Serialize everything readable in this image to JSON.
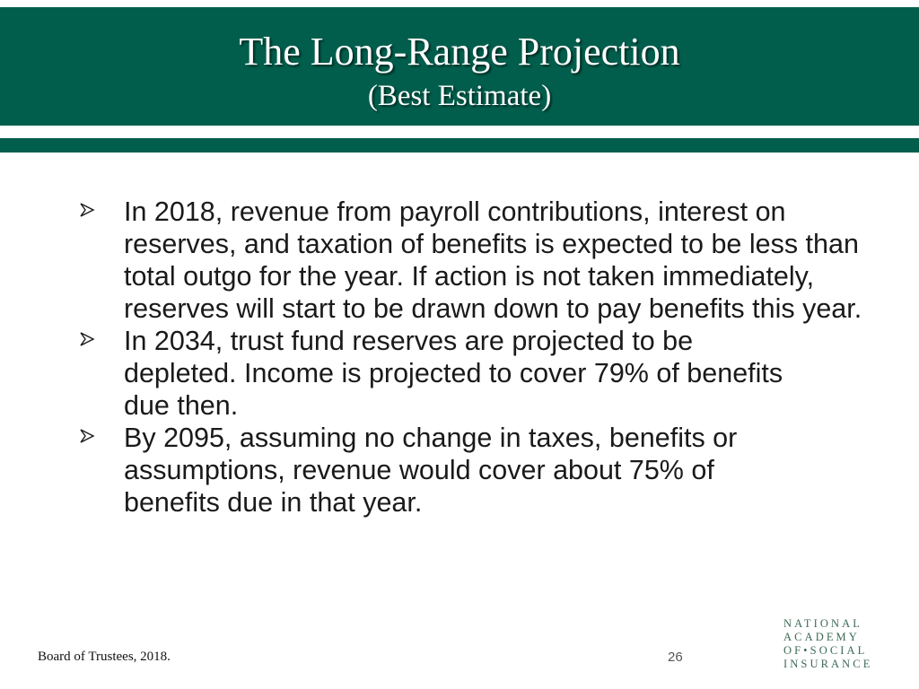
{
  "slide": {
    "title": "The Long-Range Projection",
    "subtitle": "(Best Estimate)"
  },
  "bullets": [
    {
      "icon": "arrow-bullet-icon",
      "text": "In 2018, revenue from payroll contributions, interest on reserves, and taxation of benefits is expected to be less than total outgo for the year. If action is not taken immediately, reserves will start to be drawn down to pay benefits this year."
    },
    {
      "icon": "arrow-bullet-icon",
      "text": "In 2034, trust fund reserves are projected to be depleted. Income is projected to cover 79% of benefits due then."
    },
    {
      "icon": "arrow-bullet-icon",
      "text": "By 2095, assuming no change in taxes, benefits or assumptions, revenue would cover about 75% of benefits due in that year."
    }
  ],
  "footer": {
    "source": "Board of Trustees, 2018.",
    "page_number": "26"
  },
  "logo": {
    "line1": "NATIONAL",
    "line2": "ACADEMY",
    "line3": "OF•SOCIAL",
    "line4": "INSURANCE"
  },
  "colors": {
    "header_background": "#025e4c",
    "title_text": "#ffffff",
    "logo_text": "#3c6a55"
  }
}
